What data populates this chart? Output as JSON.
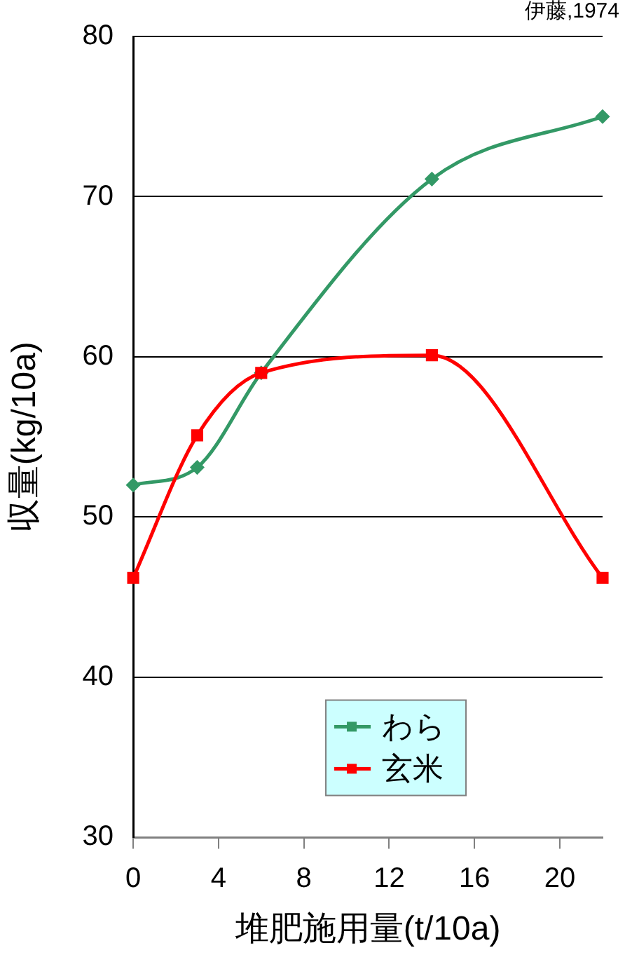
{
  "chart_data": {
    "type": "line",
    "xlabel": "堆肥施用量(t/10a)",
    "ylabel": "収量(kg/10a)",
    "annotations": [
      "伊藤,1974"
    ],
    "x": [
      0,
      3,
      6,
      14,
      22
    ],
    "series": [
      {
        "name": "わら",
        "color": "#339966",
        "marker": "diamond",
        "values": [
          52.0,
          53.1,
          59.0,
          71.1,
          75.0
        ]
      },
      {
        "name": "玄米",
        "color": "#ff0000",
        "marker": "square",
        "values": [
          46.2,
          55.1,
          59.0,
          60.1,
          46.2
        ]
      }
    ],
    "xlim": [
      0,
      22
    ],
    "xticks": [
      0,
      4,
      8,
      12,
      16,
      20
    ],
    "ylim": [
      30,
      80
    ],
    "yticks": [
      30,
      40,
      50,
      60,
      70,
      80
    ],
    "grid": "y",
    "legend": "bottom"
  }
}
